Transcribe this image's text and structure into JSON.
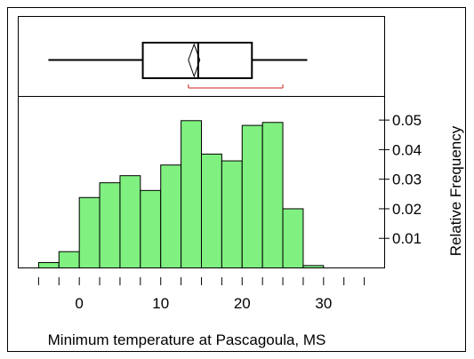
{
  "chart_data": {
    "type": "bar",
    "xlabel": "Minimum temperature at Pascagoula, MS",
    "ylabel": "Relative Frequency",
    "xlim": [
      -7.5,
      37.5
    ],
    "ylim": [
      0,
      0.058
    ],
    "x_ticks": [
      0,
      10,
      20,
      30
    ],
    "x_tick_labels": [
      "0",
      "10",
      "20",
      "30"
    ],
    "x_minor_step": 2.5,
    "y_ticks": [
      0.01,
      0.02,
      0.03,
      0.04,
      0.05
    ],
    "y_tick_labels": [
      "0.01",
      "0.02",
      "0.03",
      "0.04",
      "0.05"
    ],
    "bin_edges": [
      -5,
      -2.5,
      0,
      2.5,
      5,
      7.5,
      10,
      12.5,
      15,
      17.5,
      20,
      22.5,
      25,
      27.5,
      30
    ],
    "values": [
      0.0018,
      0.0055,
      0.0238,
      0.0288,
      0.0312,
      0.0262,
      0.0348,
      0.0498,
      0.0385,
      0.0362,
      0.0482,
      0.0492,
      0.02,
      0.0008
    ],
    "bar_color": "#80f080",
    "grid": false,
    "boxplot": {
      "min": -3.8,
      "q1": 7.8,
      "median": 14.6,
      "q3": 21.2,
      "max": 28.0,
      "mean": 14.1,
      "mean_ci": [
        13.4,
        14.8
      ],
      "shortest_half": [
        13.4,
        25.0
      ],
      "shortest_half_color": "#d02020"
    }
  }
}
